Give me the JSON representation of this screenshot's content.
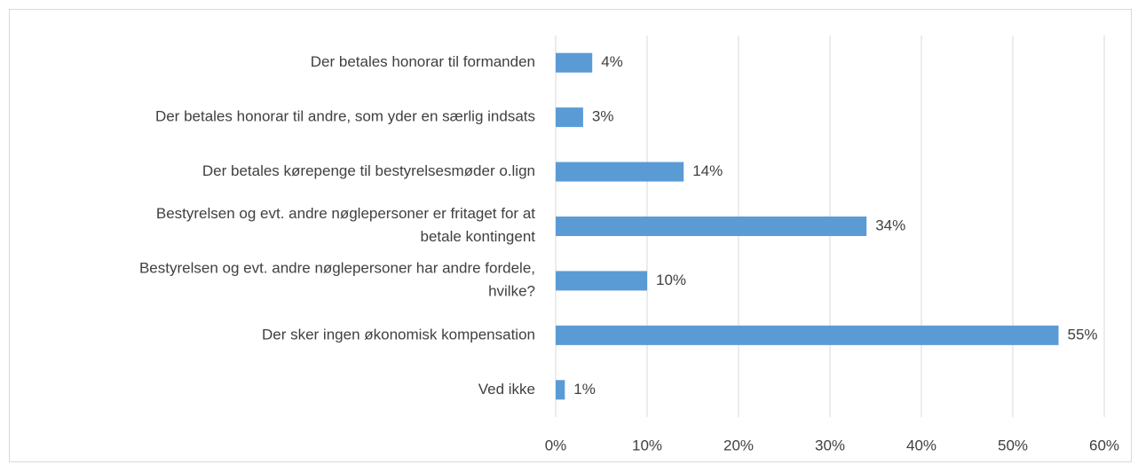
{
  "chart_data": {
    "type": "bar",
    "orientation": "horizontal",
    "categories": [
      "Der betales honorar til formanden",
      "Der betales honorar til andre, som yder en særlig indsats",
      "Der betales kørepenge til bestyrelsesmøder o.lign",
      "Bestyrelsen og evt. andre nøglepersoner er fritaget for at\nbetale kontingent",
      "Bestyrelsen og evt. andre nøglepersoner har andre fordele,\nhvilke?",
      "Der sker ingen økonomisk kompensation",
      "Ved ikke"
    ],
    "values": [
      4,
      3,
      14,
      34,
      10,
      55,
      1
    ],
    "value_labels": [
      "4%",
      "3%",
      "14%",
      "34%",
      "10%",
      "55%",
      "1%"
    ],
    "color": "#5b9bd5",
    "xlim": [
      0,
      60
    ],
    "xticks": [
      {
        "value": 0,
        "label": "0%"
      },
      {
        "value": 10,
        "label": "10%"
      },
      {
        "value": 20,
        "label": "20%"
      },
      {
        "value": 30,
        "label": "30%"
      },
      {
        "value": 40,
        "label": "40%"
      },
      {
        "value": 50,
        "label": "50%"
      },
      {
        "value": 60,
        "label": "60%"
      }
    ],
    "grid": true
  }
}
